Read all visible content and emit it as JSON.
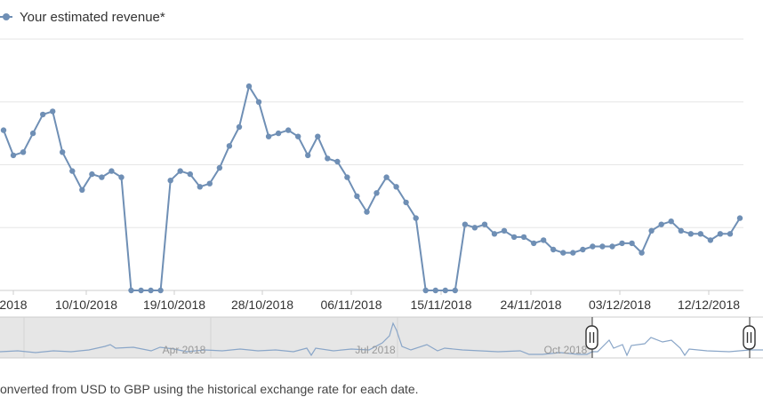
{
  "legend": {
    "label": "Your estimated revenue*"
  },
  "footnote": "onverted from USD to GBP using the historical exchange rate for each date.",
  "colors": {
    "series": "#6f8fb5",
    "grid": "#e6e6e6",
    "navigator_mask": "#e6e6e6",
    "navigator_line": "#8aa6c8"
  },
  "chart_data": {
    "type": "line",
    "series": [
      {
        "name": "Your estimated revenue*",
        "values": [
          5.1,
          4.3,
          4.4,
          5.0,
          5.6,
          5.7,
          4.4,
          3.8,
          3.2,
          3.7,
          3.6,
          3.8,
          3.6,
          0,
          0,
          0,
          0,
          3.5,
          3.8,
          3.7,
          3.3,
          3.4,
          3.9,
          4.6,
          5.2,
          6.5,
          6.0,
          4.9,
          5.0,
          5.1,
          4.9,
          4.3,
          4.9,
          4.2,
          4.1,
          3.6,
          3.0,
          2.5,
          3.1,
          3.6,
          3.3,
          2.8,
          2.3,
          0,
          0,
          0,
          0,
          2.1,
          2.0,
          2.1,
          1.8,
          1.9,
          1.7,
          1.7,
          1.5,
          1.6,
          1.3,
          1.2,
          1.2,
          1.3,
          1.4,
          1.4,
          1.4,
          1.5,
          1.5,
          1.2,
          1.9,
          2.1,
          2.2,
          1.9,
          1.8,
          1.8,
          1.6,
          1.8,
          1.8,
          2.3
        ]
      }
    ],
    "x_tick_labels": [
      "2018",
      "10/10/2018",
      "19/10/2018",
      "28/10/2018",
      "06/11/2018",
      "15/11/2018",
      "24/11/2018",
      "03/12/2018",
      "12/12/2018"
    ],
    "ylim": [
      0,
      8
    ],
    "grid": true,
    "legend_position": "top-left",
    "navigator": {
      "tick_labels": [
        "Apr 2018",
        "Jul 2018",
        "Oct 2018"
      ]
    }
  }
}
